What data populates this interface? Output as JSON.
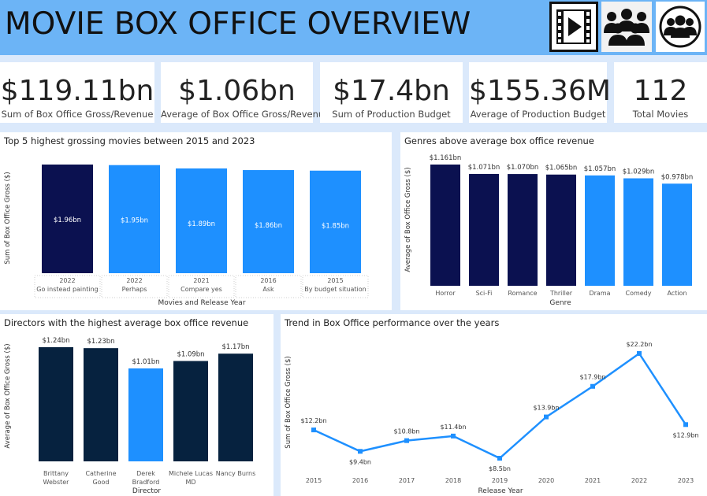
{
  "header": {
    "title": "MOVIE BOX OFFICE OVERVIEW",
    "icons": [
      "film-strip-play-icon",
      "team-people-icon",
      "group-circle-icon"
    ],
    "colors": {
      "header_bg": "#6cb4f6"
    }
  },
  "kpis": [
    {
      "value": "$119.11bn",
      "label": "Sum of Box Office Gross/Revenue"
    },
    {
      "value": "$1.06bn",
      "label": "Average of Box Office Gross/Revenue"
    },
    {
      "value": "$17.4bn",
      "label": "Sum of Production Budget"
    },
    {
      "value": "$155.36M",
      "label": "Average of Production Budget"
    },
    {
      "value": "112",
      "label": "Total Movies"
    }
  ],
  "panels": {
    "top5": {
      "title": "Top 5 highest grossing movies between 2015 and 2023"
    },
    "genres": {
      "title": "Genres above average box office revenue"
    },
    "directors": {
      "title": "Directors with the highest average box office revenue"
    },
    "trend": {
      "title": "Trend in Box Office performance over the years"
    }
  },
  "chart_data": [
    {
      "type": "bar",
      "title": "Top 5 highest grossing movies between 2015 and 2023",
      "xlabel": "Movies and Release Year",
      "ylabel": "Sum of Box Office Gross ($)",
      "categories": [
        [
          "2022",
          "Go instead painting"
        ],
        [
          "2022",
          "Perhaps"
        ],
        [
          "2021",
          "Compare yes"
        ],
        [
          "2016",
          "Ask"
        ],
        [
          "2015",
          "By budget situation"
        ]
      ],
      "values": [
        1.96,
        1.95,
        1.89,
        1.86,
        1.85
      ],
      "labels": [
        "$1.96bn",
        "$1.95bn",
        "$1.89bn",
        "$1.86bn",
        "$1.85bn"
      ],
      "colors": [
        "#0b1150",
        "#1e90ff",
        "#1e90ff",
        "#1e90ff",
        "#1e90ff"
      ],
      "ylim": [
        0,
        1.96
      ]
    },
    {
      "type": "bar",
      "title": "Genres above average box office revenue",
      "xlabel": "Genre",
      "ylabel": "Average of Box Office Gross ($)",
      "categories": [
        "Horror",
        "Sci-Fi",
        "Romance",
        "Thriller",
        "Drama",
        "Comedy",
        "Action"
      ],
      "values": [
        1.161,
        1.071,
        1.07,
        1.065,
        1.057,
        1.029,
        0.978
      ],
      "labels": [
        "$1.161bn",
        "$1.071bn",
        "$1.070bn",
        "$1.065bn",
        "$1.057bn",
        "$1.029bn",
        "$0.978bn"
      ],
      "colors": [
        "#0b1150",
        "#0b1150",
        "#0b1150",
        "#0b1150",
        "#1e90ff",
        "#1e90ff",
        "#1e90ff"
      ],
      "ylim": [
        0,
        1.161
      ]
    },
    {
      "type": "bar",
      "title": "Directors with the highest average box office revenue",
      "xlabel": "Director",
      "ylabel": "Average of Box Office Gross ($)",
      "categories": [
        [
          "Brittany",
          "Webster"
        ],
        [
          "Catherine",
          "Good"
        ],
        [
          "Derek",
          "Bradford"
        ],
        [
          "Michele Lucas",
          "MD"
        ],
        [
          "Nancy Burns"
        ]
      ],
      "values": [
        1.24,
        1.23,
        1.01,
        1.09,
        1.17
      ],
      "labels": [
        "$1.24bn",
        "$1.23bn",
        "$1.01bn",
        "$1.09bn",
        "$1.17bn"
      ],
      "colors": [
        "#06223f",
        "#06223f",
        "#1e90ff",
        "#06223f",
        "#06223f"
      ],
      "ylim": [
        0,
        1.24
      ]
    },
    {
      "type": "line",
      "title": "Trend in Box Office performance over the years",
      "xlabel": "Release Year",
      "ylabel": "Sum of Box Office Gross ($)",
      "x": [
        "2015",
        "2016",
        "2017",
        "2018",
        "2019",
        "2020",
        "2021",
        "2022",
        "2023"
      ],
      "values": [
        12.2,
        9.4,
        10.8,
        11.4,
        8.5,
        13.9,
        17.9,
        22.2,
        12.9
      ],
      "labels": [
        "$12.2bn",
        "$9.4bn",
        "$10.8bn",
        "$11.4bn",
        "$8.5bn",
        "$13.9bn",
        "$17.9bn",
        "$22.2bn",
        "$12.9bn"
      ],
      "color": "#1e90ff",
      "ylim": [
        8.5,
        22.2
      ]
    }
  ]
}
